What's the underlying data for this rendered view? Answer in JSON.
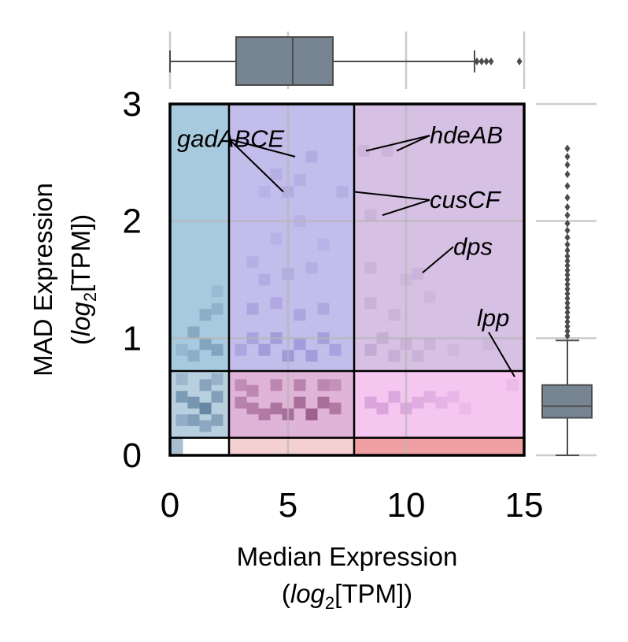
{
  "chart_data": {
    "type": "heatmap",
    "xlabel_line1": "Median Expression",
    "xlabel_line2_pre": "(",
    "xlabel_line2_it": "log",
    "xlabel_line2_sub": "2",
    "xlabel_line2_post": "[TPM])",
    "ylabel_line1": "MAD Expression",
    "ylabel_line2_pre": "(",
    "ylabel_line2_it": "log",
    "ylabel_line2_sub": "2",
    "ylabel_line2_post": "[TPM])",
    "xlim": [
      0,
      15
    ],
    "ylim": [
      0,
      3
    ],
    "x_ticks": [
      {
        "value": 0,
        "label": "0"
      },
      {
        "value": 5,
        "label": "5"
      },
      {
        "value": 10,
        "label": "10"
      },
      {
        "value": 15,
        "label": "15"
      }
    ],
    "y_ticks": [
      {
        "value": 0,
        "label": "0"
      },
      {
        "value": 1,
        "label": "1"
      },
      {
        "value": 2,
        "label": "2"
      },
      {
        "value": 3,
        "label": "3"
      }
    ],
    "grid": true,
    "region_boundaries": {
      "x": [
        2.5,
        7.8
      ],
      "y": [
        0.15,
        0.72
      ]
    },
    "region_colors": {
      "x_low_y_mid_high": "#a8cade",
      "x_mid_y_high": "#c3bdec",
      "x_high_y_high": "#d6c0e3",
      "x_low_y_mid": "#b8cfe0",
      "x_mid_y_mid": "#e0b3d8",
      "x_high_y_mid": "#f4c6f0",
      "x_low_y_low": "#ffffff",
      "x_mid_y_low": "#f5d0d2",
      "x_high_y_low": "#f0a0a2"
    },
    "density_bins": [
      {
        "x": 0.5,
        "y": 0.5,
        "v": 0.55
      },
      {
        "x": 1.0,
        "y": 0.45,
        "v": 0.6
      },
      {
        "x": 1.5,
        "y": 0.4,
        "v": 0.75
      },
      {
        "x": 2.0,
        "y": 0.5,
        "v": 0.5
      },
      {
        "x": 1.5,
        "y": 0.6,
        "v": 0.45
      },
      {
        "x": 1.0,
        "y": 0.3,
        "v": 0.5
      },
      {
        "x": 0.5,
        "y": 0.3,
        "v": 0.35
      },
      {
        "x": 2.0,
        "y": 0.3,
        "v": 0.45
      },
      {
        "x": 1.5,
        "y": 0.25,
        "v": 0.4
      },
      {
        "x": 0.5,
        "y": 0.65,
        "v": 0.25
      },
      {
        "x": 2.0,
        "y": 0.65,
        "v": 0.3
      },
      {
        "x": 1.0,
        "y": 1.05,
        "v": 0.35
      },
      {
        "x": 1.5,
        "y": 0.95,
        "v": 0.4
      },
      {
        "x": 2.0,
        "y": 0.9,
        "v": 0.4
      },
      {
        "x": 1.5,
        "y": 1.2,
        "v": 0.3
      },
      {
        "x": 2.0,
        "y": 1.25,
        "v": 0.25
      },
      {
        "x": 1.0,
        "y": 0.85,
        "v": 0.3
      },
      {
        "x": 0.5,
        "y": 0.9,
        "v": 0.2
      },
      {
        "x": 2.0,
        "y": 1.4,
        "v": 0.15
      },
      {
        "x": 3.0,
        "y": 0.45,
        "v": 0.5
      },
      {
        "x": 3.5,
        "y": 0.4,
        "v": 0.55
      },
      {
        "x": 4.0,
        "y": 0.35,
        "v": 0.6
      },
      {
        "x": 4.5,
        "y": 0.4,
        "v": 0.65
      },
      {
        "x": 5.0,
        "y": 0.35,
        "v": 0.7
      },
      {
        "x": 5.5,
        "y": 0.45,
        "v": 0.7
      },
      {
        "x": 6.0,
        "y": 0.35,
        "v": 0.85
      },
      {
        "x": 6.5,
        "y": 0.45,
        "v": 0.7
      },
      {
        "x": 7.0,
        "y": 0.4,
        "v": 0.6
      },
      {
        "x": 3.0,
        "y": 0.6,
        "v": 0.4
      },
      {
        "x": 3.5,
        "y": 0.55,
        "v": 0.45
      },
      {
        "x": 4.5,
        "y": 0.6,
        "v": 0.45
      },
      {
        "x": 5.5,
        "y": 0.6,
        "v": 0.5
      },
      {
        "x": 6.5,
        "y": 0.6,
        "v": 0.45
      },
      {
        "x": 7.0,
        "y": 0.6,
        "v": 0.35
      },
      {
        "x": 3.0,
        "y": 0.9,
        "v": 0.35
      },
      {
        "x": 3.5,
        "y": 1.0,
        "v": 0.4
      },
      {
        "x": 4.0,
        "y": 0.9,
        "v": 0.5
      },
      {
        "x": 4.5,
        "y": 1.0,
        "v": 0.5
      },
      {
        "x": 5.0,
        "y": 0.85,
        "v": 0.55
      },
      {
        "x": 5.5,
        "y": 0.95,
        "v": 0.5
      },
      {
        "x": 6.0,
        "y": 0.85,
        "v": 0.5
      },
      {
        "x": 6.5,
        "y": 1.0,
        "v": 0.45
      },
      {
        "x": 7.0,
        "y": 0.9,
        "v": 0.4
      },
      {
        "x": 3.5,
        "y": 1.25,
        "v": 0.35
      },
      {
        "x": 4.5,
        "y": 1.3,
        "v": 0.3
      },
      {
        "x": 5.5,
        "y": 1.2,
        "v": 0.35
      },
      {
        "x": 6.5,
        "y": 1.25,
        "v": 0.3
      },
      {
        "x": 4.0,
        "y": 1.5,
        "v": 0.25
      },
      {
        "x": 5.0,
        "y": 1.55,
        "v": 0.25
      },
      {
        "x": 6.0,
        "y": 1.6,
        "v": 0.2
      },
      {
        "x": 3.5,
        "y": 1.65,
        "v": 0.2
      },
      {
        "x": 4.5,
        "y": 1.85,
        "v": 0.15
      },
      {
        "x": 6.5,
        "y": 1.8,
        "v": 0.15
      },
      {
        "x": 5.5,
        "y": 2.0,
        "v": 0.15
      },
      {
        "x": 4.5,
        "y": 2.4,
        "v": 0.2
      },
      {
        "x": 5.0,
        "y": 2.25,
        "v": 0.25
      },
      {
        "x": 5.5,
        "y": 2.35,
        "v": 0.2
      },
      {
        "x": 6.0,
        "y": 2.55,
        "v": 0.25
      },
      {
        "x": 4.0,
        "y": 2.25,
        "v": 0.15
      },
      {
        "x": 7.3,
        "y": 2.25,
        "v": 0.2
      },
      {
        "x": 8.5,
        "y": 0.45,
        "v": 0.45
      },
      {
        "x": 9.0,
        "y": 0.4,
        "v": 0.45
      },
      {
        "x": 9.5,
        "y": 0.5,
        "v": 0.4
      },
      {
        "x": 10.0,
        "y": 0.4,
        "v": 0.4
      },
      {
        "x": 10.5,
        "y": 0.45,
        "v": 0.35
      },
      {
        "x": 11.0,
        "y": 0.5,
        "v": 0.3
      },
      {
        "x": 11.5,
        "y": 0.45,
        "v": 0.25
      },
      {
        "x": 12.0,
        "y": 0.5,
        "v": 0.2
      },
      {
        "x": 12.5,
        "y": 0.4,
        "v": 0.15
      },
      {
        "x": 8.5,
        "y": 0.9,
        "v": 0.35
      },
      {
        "x": 9.0,
        "y": 1.0,
        "v": 0.3
      },
      {
        "x": 9.5,
        "y": 0.85,
        "v": 0.3
      },
      {
        "x": 10.0,
        "y": 0.95,
        "v": 0.25
      },
      {
        "x": 10.5,
        "y": 0.85,
        "v": 0.25
      },
      {
        "x": 11.0,
        "y": 0.95,
        "v": 0.2
      },
      {
        "x": 12.0,
        "y": 0.9,
        "v": 0.15
      },
      {
        "x": 8.5,
        "y": 1.3,
        "v": 0.25
      },
      {
        "x": 9.5,
        "y": 1.2,
        "v": 0.2
      },
      {
        "x": 8.5,
        "y": 1.6,
        "v": 0.2
      },
      {
        "x": 10.0,
        "y": 1.5,
        "v": 0.15
      },
      {
        "x": 8.5,
        "y": 2.05,
        "v": 0.2
      },
      {
        "x": 10.5,
        "y": 1.55,
        "v": 0.2
      },
      {
        "x": 11.0,
        "y": 1.35,
        "v": 0.15
      },
      {
        "x": 8.2,
        "y": 2.6,
        "v": 0.2
      },
      {
        "x": 9.2,
        "y": 2.6,
        "v": 0.2
      },
      {
        "x": 14.5,
        "y": 0.6,
        "v": 0.15
      },
      {
        "x": 13.5,
        "y": 0.95,
        "v": 0.15
      }
    ],
    "annotations": [
      {
        "label": "gadABCE",
        "targets": [
          {
            "x": 5.3,
            "y": 2.55
          },
          {
            "x": 4.8,
            "y": 2.25
          }
        ],
        "anchor": {
          "x": 2.5,
          "y": 2.7
        },
        "text_pos": {
          "x": 0.3,
          "y": 2.7
        }
      },
      {
        "label": "hdeAB",
        "targets": [
          {
            "x": 8.3,
            "y": 2.6
          },
          {
            "x": 9.6,
            "y": 2.6
          }
        ],
        "anchor": {
          "x": 11.0,
          "y": 2.73
        },
        "text_pos": {
          "x": 11.0,
          "y": 2.73
        }
      },
      {
        "label": "cusCF",
        "targets": [
          {
            "x": 7.8,
            "y": 2.25
          },
          {
            "x": 9.0,
            "y": 2.05
          }
        ],
        "anchor": {
          "x": 11.0,
          "y": 2.18
        },
        "text_pos": {
          "x": 11.0,
          "y": 2.18
        }
      },
      {
        "label": "dps",
        "targets": [
          {
            "x": 10.7,
            "y": 1.56
          }
        ],
        "anchor": {
          "x": 12.0,
          "y": 1.78
        },
        "text_pos": {
          "x": 12.0,
          "y": 1.78
        }
      },
      {
        "label": "lpp",
        "targets": [
          {
            "x": 14.6,
            "y": 0.67
          }
        ],
        "anchor": {
          "x": 13.5,
          "y": 1.05
        },
        "text_pos": {
          "x": 13.0,
          "y": 1.17
        }
      }
    ],
    "top_boxplot": {
      "color": "#778491",
      "whisker_low": 0.0,
      "q1": 2.8,
      "median": 5.2,
      "q3": 6.9,
      "whisker_high": 12.9,
      "outliers": [
        13.0,
        13.2,
        13.4,
        13.6,
        14.8
      ]
    },
    "right_boxplot": {
      "color": "#778491",
      "whisker_low": 0.0,
      "q1": 0.32,
      "median": 0.42,
      "q3": 0.6,
      "whisker_high": 0.98,
      "outliers": [
        1.02,
        1.06,
        1.1,
        1.14,
        1.18,
        1.22,
        1.26,
        1.3,
        1.34,
        1.38,
        1.42,
        1.46,
        1.5,
        1.54,
        1.58,
        1.62,
        1.66,
        1.7,
        1.75,
        1.8,
        1.86,
        1.92,
        1.98,
        2.05,
        2.12,
        2.2,
        2.3,
        2.4,
        2.48,
        2.55,
        2.62
      ]
    }
  }
}
